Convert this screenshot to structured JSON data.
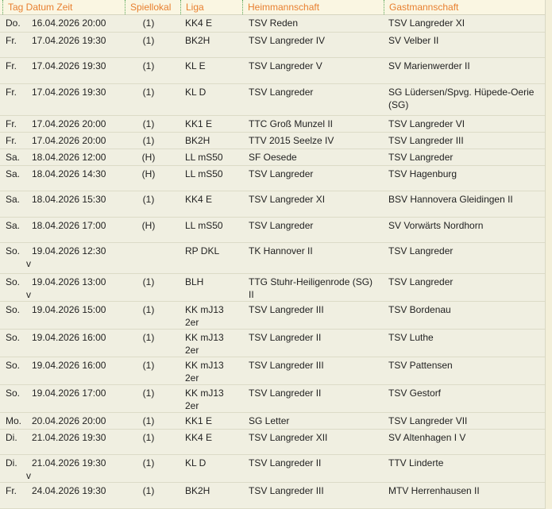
{
  "table": {
    "columns": [
      "Tag Datum Zeit",
      "Spiellokal",
      "Liga",
      "Heimmannschaft",
      "Gastmannschaft"
    ],
    "rows": [
      {
        "tag": "Do.",
        "datetime": "16.04.2026 20:00",
        "note": "",
        "lokal": "(1)",
        "liga": "KK4 E",
        "heim": "TSV Reden",
        "gast": "TSV Langreder XI"
      },
      {
        "tag": "Fr.",
        "datetime": "17.04.2026 19:30",
        "note": "",
        "lokal": "(1)",
        "liga": "BK2H",
        "heim": "TSV Langreder IV",
        "gast": "SV Velber II"
      },
      {
        "tag": "Fr.",
        "datetime": "17.04.2026 19:30",
        "note": "",
        "lokal": "(1)",
        "liga": "KL E",
        "heim": "TSV Langreder V",
        "gast": "SV Marienwerder II"
      },
      {
        "tag": "Fr.",
        "datetime": "17.04.2026 19:30",
        "note": "",
        "lokal": "(1)",
        "liga": "KL D",
        "heim": "TSV Langreder",
        "gast": "SG Lüdersen/Spvg. Hüpede-Oerie (SG)"
      },
      {
        "tag": "Fr.",
        "datetime": "17.04.2026 20:00",
        "note": "",
        "lokal": "(1)",
        "liga": "KK1 E",
        "heim": "TTC Groß Munzel II",
        "gast": "TSV Langreder VI"
      },
      {
        "tag": "Fr.",
        "datetime": "17.04.2026 20:00",
        "note": "",
        "lokal": "(1)",
        "liga": "BK2H",
        "heim": "TTV 2015 Seelze IV",
        "gast": "TSV Langreder III"
      },
      {
        "tag": "Sa.",
        "datetime": "18.04.2026 12:00",
        "note": "",
        "lokal": "(H)",
        "liga": "LL mS50",
        "heim": "SF Oesede",
        "gast": "TSV Langreder"
      },
      {
        "tag": "Sa.",
        "datetime": "18.04.2026 14:30",
        "note": "",
        "lokal": "(H)",
        "liga": "LL mS50",
        "heim": "TSV Langreder",
        "gast": "TSV Hagenburg"
      },
      {
        "tag": "Sa.",
        "datetime": "18.04.2026 15:30",
        "note": "",
        "lokal": "(1)",
        "liga": "KK4 E",
        "heim": "TSV Langreder XI",
        "gast": "BSV Hannovera Gleidingen II"
      },
      {
        "tag": "Sa.",
        "datetime": "18.04.2026 17:00",
        "note": "",
        "lokal": "(H)",
        "liga": "LL mS50",
        "heim": "TSV Langreder",
        "gast": "SV Vorwärts Nordhorn"
      },
      {
        "tag": "So.",
        "datetime": "19.04.2026 12:30",
        "note": "v",
        "lokal": "",
        "liga": "RP DKL",
        "heim": "TK Hannover II",
        "gast": "TSV Langreder"
      },
      {
        "tag": "So.",
        "datetime": "19.04.2026 13:00",
        "note": "v",
        "lokal": "(1)",
        "liga": "BLH",
        "heim": "TTG Stuhr-Heiligenrode (SG) II",
        "gast": "TSV Langreder"
      },
      {
        "tag": "So.",
        "datetime": "19.04.2026 15:00",
        "note": "",
        "lokal": "(1)",
        "liga": "KK mJ13 2er",
        "heim": "TSV Langreder III",
        "gast": "TSV Bordenau"
      },
      {
        "tag": "So.",
        "datetime": "19.04.2026 16:00",
        "note": "",
        "lokal": "(1)",
        "liga": "KK mJ13 2er",
        "heim": "TSV Langreder II",
        "gast": "TSV Luthe"
      },
      {
        "tag": "So.",
        "datetime": "19.04.2026 16:00",
        "note": "",
        "lokal": "(1)",
        "liga": "KK mJ13 2er",
        "heim": "TSV Langreder III",
        "gast": "TSV Pattensen"
      },
      {
        "tag": "So.",
        "datetime": "19.04.2026 17:00",
        "note": "",
        "lokal": "(1)",
        "liga": "KK mJ13 2er",
        "heim": "TSV Langreder II",
        "gast": "TSV Gestorf"
      },
      {
        "tag": "Mo.",
        "datetime": "20.04.2026 20:00",
        "note": "",
        "lokal": "(1)",
        "liga": "KK1 E",
        "heim": "SG Letter",
        "gast": "TSV Langreder VII"
      },
      {
        "tag": "Di.",
        "datetime": "21.04.2026 19:30",
        "note": "",
        "lokal": "(1)",
        "liga": "KK4 E",
        "heim": "TSV Langreder XII",
        "gast": "SV Altenhagen I V"
      },
      {
        "tag": "Di.",
        "datetime": "21.04.2026 19:30",
        "note": "v",
        "lokal": "(1)",
        "liga": "KL D",
        "heim": "TSV Langreder II",
        "gast": "TTV Linderte"
      },
      {
        "tag": "Fr.",
        "datetime": "24.04.2026 19:30",
        "note": "",
        "lokal": "(1)",
        "liga": "BK2H",
        "heim": "TSV Langreder III",
        "gast": "MTV Herrenhausen II"
      }
    ]
  },
  "colors": {
    "page_bg": "#f3efd9",
    "row_bg": "#f0efe1",
    "header_bg": "#faf6e2",
    "header_text": "#e87f2f",
    "separator_green": "#59a859",
    "line": "#dcdbc7",
    "edge": "#d8d7c3",
    "text": "#222222"
  }
}
